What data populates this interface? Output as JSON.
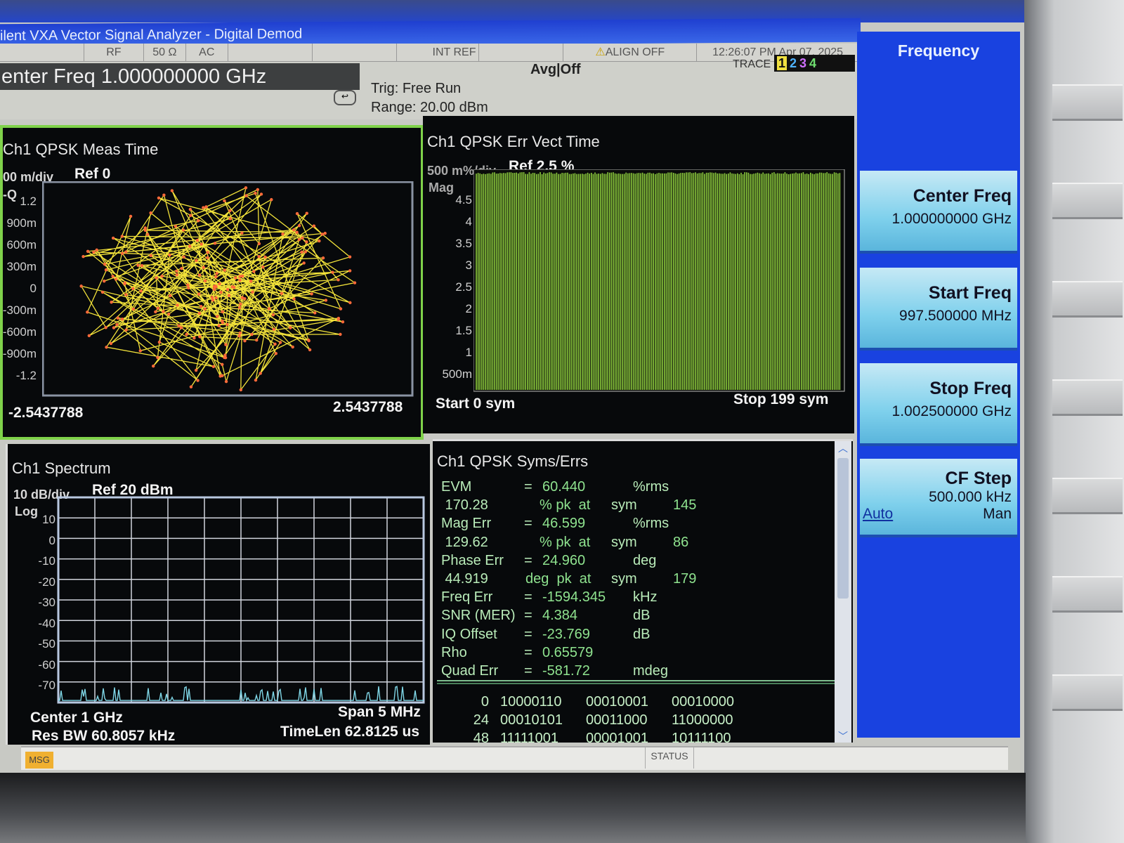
{
  "window": {
    "title": "ilent VXA Vector Signal Analyzer - Digital Demod"
  },
  "status_row": {
    "rf": "RF",
    "impedance": "50 Ω",
    "coupling": "AC",
    "ref": "INT REF",
    "align": "ALIGN OFF",
    "datetime": "12:26:07 PM Apr 07, 2025"
  },
  "header": {
    "center_freq": "enter Freq 1.000000000 GHz",
    "trigger": "Trig: Free Run",
    "range": "Range: 20.00 dBm",
    "avg": "Avg|Off",
    "trace_label": "TRACE",
    "traces": [
      "1",
      "2",
      "3",
      "4"
    ],
    "trace_colors": [
      "#f0e040",
      "#4fb3ff",
      "#d070ff",
      "#70e070"
    ]
  },
  "constellation": {
    "title": "Ch1 QPSK Meas Time",
    "scale": "00 m/div",
    "ref": "Ref 0",
    "axis": "-Q",
    "yticks": [
      "1.2",
      "900m",
      "600m",
      "300m",
      "0",
      "-300m",
      "-600m",
      "-900m",
      "-1.2"
    ],
    "xmin": "-2.5437788",
    "xmax": "2.5437788",
    "trace_color": "#f2e23a",
    "point_color": "#ff6a3a"
  },
  "err_vect": {
    "title": "Ch1 QPSK Err Vect Time",
    "scale": "500 m%/div",
    "ref": "Ref 2.5  %",
    "axis": "Mag",
    "yticks": [
      "4.5",
      "4",
      "3.5",
      "3",
      "2.5",
      "2",
      "1.5",
      "1",
      "500m"
    ],
    "start": "Start 0  sym",
    "stop": "Stop 199  sym",
    "color": "#8ccc3c"
  },
  "spectrum": {
    "title": "Ch1 Spectrum",
    "scale": "10 dB/div",
    "ref": "Ref 20 dBm",
    "axis": "Log",
    "yticks": [
      "10",
      "0",
      "-10",
      "-20",
      "-30",
      "-40",
      "-50",
      "-60",
      "-70"
    ],
    "center": "Center 1 GHz",
    "span": "Span 5 MHz",
    "rbw": "Res BW 60.8057 kHz",
    "timelen": "TimeLen 62.8125 us",
    "trace_color": "#7fd6e6"
  },
  "syms_errs": {
    "title": "Ch1 QPSK Syms/Errs",
    "rows": [
      {
        "label": "EVM",
        "eq": "=",
        "value": "60.440",
        "unit": "%rms",
        "sym": ""
      },
      {
        "label": " 170.28",
        "eq": "",
        "value": "% pk  at",
        "unit": "sym",
        "sym": "145"
      },
      {
        "label": "Mag Err",
        "eq": "=",
        "value": "46.599",
        "unit": "%rms",
        "sym": ""
      },
      {
        "label": " 129.62",
        "eq": "",
        "value": "% pk  at",
        "unit": "sym",
        "sym": "86"
      },
      {
        "label": "Phase Err",
        "eq": "=",
        "value": "24.960",
        "unit": "deg",
        "sym": ""
      },
      {
        "label": " 44.919",
        "eq": "",
        "value": "deg  pk  at",
        "unit": "sym",
        "sym": "179"
      },
      {
        "label": "Freq Err",
        "eq": "=",
        "value": "-1594.345",
        "unit": "kHz",
        "sym": ""
      },
      {
        "label": "SNR (MER)",
        "eq": "=",
        "value": "4.384",
        "unit": "dB",
        "sym": ""
      },
      {
        "label": "IQ Offset",
        "eq": "=",
        "value": "-23.769",
        "unit": "dB",
        "sym": ""
      },
      {
        "label": "Rho",
        "eq": "=",
        "value": "0.65579",
        "unit": "",
        "sym": ""
      },
      {
        "label": "Quad Err",
        "eq": "=",
        "value": "-581.72",
        "unit": "mdeg",
        "sym": ""
      }
    ],
    "bits": [
      {
        "index": "0",
        "words": [
          "10000110",
          "00010001",
          "00010000"
        ]
      },
      {
        "index": "24",
        "words": [
          "00010101",
          "00011000",
          "11000000"
        ]
      },
      {
        "index": "48",
        "words": [
          "11111001",
          "00001001",
          "10111100"
        ]
      }
    ]
  },
  "softkeys": {
    "menu_title": "Frequency",
    "items": [
      {
        "label": "Center Freq",
        "value": "1.000000000 GHz"
      },
      {
        "label": "Start Freq",
        "value": "997.500000 MHz"
      },
      {
        "label": "Stop Freq",
        "value": "1.002500000 GHz"
      },
      {
        "label": "CF Step",
        "value": "500.000 kHz",
        "auto": "Auto",
        "man": "Man"
      }
    ]
  },
  "bottom": {
    "msg": "MSG",
    "status": "STATUS"
  }
}
